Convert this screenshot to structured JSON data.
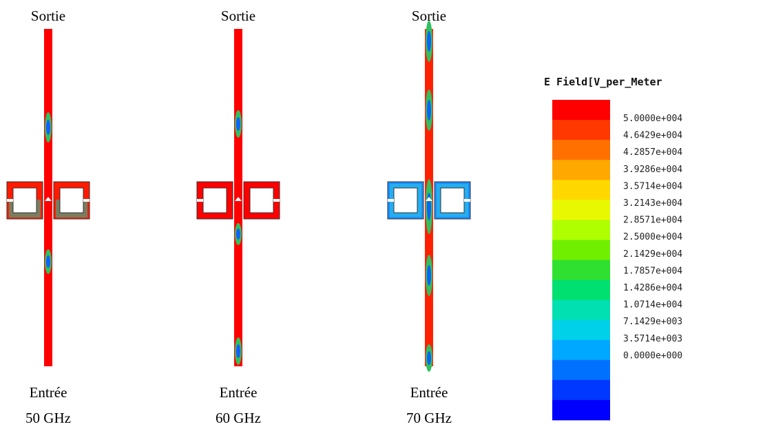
{
  "panels": [
    {
      "top": "Sortie",
      "bottom": "Entrée",
      "frequency": "50 GHz"
    },
    {
      "top": "Sortie",
      "bottom": "Entrée",
      "frequency": "60 GHz"
    },
    {
      "top": "Sortie",
      "bottom": "Entrée",
      "frequency": "70 GHz"
    }
  ],
  "legend": {
    "title": "E Field[V_per_Meter",
    "labels": [
      "5.0000e+004",
      "4.6429e+004",
      "4.2857e+004",
      "3.9286e+004",
      "3.5714e+004",
      "3.2143e+004",
      "2.8571e+004",
      "2.5000e+004",
      "2.1429e+004",
      "1.7857e+004",
      "1.4286e+004",
      "1.0714e+004",
      "7.1429e+003",
      "3.5714e+003",
      "0.0000e+000"
    ]
  }
}
